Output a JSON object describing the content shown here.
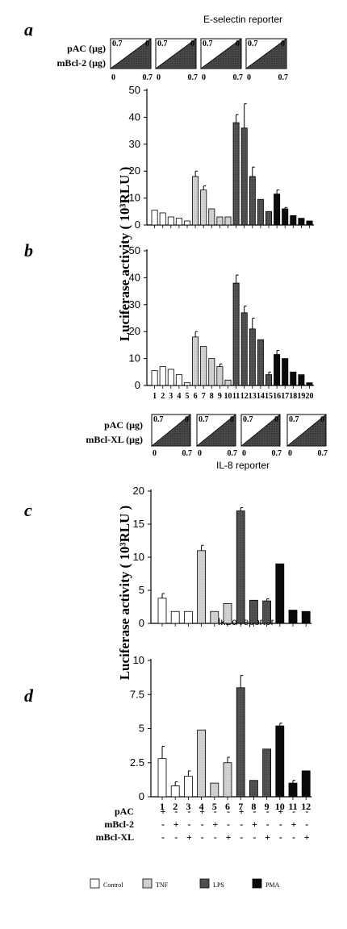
{
  "panel_labels": [
    "a",
    "b",
    "c",
    "d"
  ],
  "titles": {
    "e_selectin": "E-selectin reporter",
    "il8": "IL-8 reporter",
    "ikba": "IκBα reporter"
  },
  "ylabel_ab": "Luciferase activity ( 10³RLU )",
  "ylabel_cd": "Luciferase activity ( 10³RLU )",
  "wedges": {
    "top": {
      "row1": "pAC (µg)",
      "row2": "mBcl-2 (µg)",
      "start": "0.7",
      "end": "0",
      "low": "0",
      "high": "0.7"
    },
    "bottom": {
      "row1": "pAC (µg)",
      "row2": "mBcl-XL (µg)",
      "start": "0.7",
      "end": "0",
      "low": "0",
      "high": "0.7"
    }
  },
  "treatment_table": {
    "rows": [
      {
        "label": "pAC",
        "signs": [
          "+",
          "-",
          "-",
          "+",
          "-",
          "-",
          "+",
          "-",
          "-",
          "+",
          "-",
          "-"
        ]
      },
      {
        "label": "mBcl-2",
        "signs": [
          "-",
          "+",
          "-",
          "-",
          "+",
          "-",
          "-",
          "+",
          "-",
          "-",
          "+",
          "-"
        ]
      },
      {
        "label": "mBcl-XL",
        "signs": [
          "-",
          "-",
          "+",
          "-",
          "-",
          "+",
          "-",
          "-",
          "+",
          "-",
          "-",
          "+"
        ]
      }
    ]
  },
  "legend": [
    {
      "label": "Control",
      "color": "#ffffff"
    },
    {
      "label": "TNF",
      "color": "#d4d4d4"
    },
    {
      "label": "LPS",
      "color": "#555555"
    },
    {
      "label": "PMA",
      "color": "#0a0a0a"
    }
  ],
  "colors": {
    "control": "#ffffff",
    "tnf": "#d4d4d4",
    "lps": "#555555",
    "pma": "#0a0a0a"
  },
  "chart_data": [
    {
      "id": "a",
      "type": "bar",
      "title": "E-selectin reporter",
      "ylim": [
        0,
        50
      ],
      "yticks": [
        "0",
        "10",
        "20",
        "30",
        "40",
        "50"
      ],
      "groups": [
        "Control",
        "Control",
        "Control",
        "Control",
        "Control",
        "TNF",
        "TNF",
        "TNF",
        "TNF",
        "TNF",
        "LPS",
        "LPS",
        "LPS",
        "LPS",
        "LPS",
        "PMA",
        "PMA",
        "PMA",
        "PMA",
        "PMA"
      ],
      "values": [
        5.5,
        4.5,
        3,
        2.5,
        1.5,
        18,
        13,
        6,
        3,
        3,
        38,
        36,
        18,
        9.5,
        5,
        11.5,
        6,
        3.5,
        2.5,
        1.5
      ],
      "errors": [
        0,
        0,
        0,
        0,
        0,
        2,
        1.5,
        0,
        0,
        0,
        3,
        9,
        3.5,
        0,
        0,
        1.5,
        0.5,
        0,
        0,
        0
      ]
    },
    {
      "id": "b",
      "type": "bar",
      "ylim": [
        0,
        50
      ],
      "yticks": [
        "0",
        "10",
        "20",
        "30",
        "40",
        "50"
      ],
      "categories": [
        "1",
        "2",
        "3",
        "4",
        "5",
        "6",
        "7",
        "8",
        "9",
        "10",
        "11",
        "12",
        "13",
        "14",
        "15",
        "16",
        "17",
        "18",
        "19",
        "20"
      ],
      "groups": [
        "Control",
        "Control",
        "Control",
        "Control",
        "Control",
        "TNF",
        "TNF",
        "TNF",
        "TNF",
        "TNF",
        "LPS",
        "LPS",
        "LPS",
        "LPS",
        "LPS",
        "PMA",
        "PMA",
        "PMA",
        "PMA",
        "PMA"
      ],
      "values": [
        5.5,
        7,
        6,
        4,
        1,
        18,
        14.5,
        10,
        7,
        2,
        38,
        27,
        21,
        17,
        4,
        11.5,
        10,
        5,
        4,
        1
      ],
      "errors": [
        0,
        0,
        0,
        0,
        0,
        2,
        0,
        0,
        1,
        0,
        3,
        2.5,
        4,
        0,
        1,
        1.5,
        0,
        0,
        0,
        0
      ]
    },
    {
      "id": "c",
      "type": "bar",
      "title": "IL-8 reporter",
      "ylim": [
        0,
        20
      ],
      "yticks": [
        "0",
        "5",
        "10",
        "15",
        "20"
      ],
      "groups": [
        "Control",
        "Control",
        "Control",
        "TNF",
        "TNF",
        "TNF",
        "LPS",
        "LPS",
        "LPS",
        "PMA",
        "PMA",
        "PMA"
      ],
      "values": [
        3.8,
        1.8,
        1.8,
        11,
        1.8,
        3,
        17,
        3.5,
        3.4,
        9,
        2,
        1.8
      ],
      "errors": [
        0.7,
        0,
        0,
        0.8,
        0,
        0,
        0.5,
        0,
        0.3,
        0,
        0,
        0
      ]
    },
    {
      "id": "d",
      "type": "bar",
      "title": "IκBα reporter",
      "ylim": [
        0,
        10
      ],
      "yticks": [
        "0",
        "2.5",
        "5",
        "7.5",
        "10"
      ],
      "categories": [
        "1",
        "2",
        "3",
        "4",
        "5",
        "6",
        "7",
        "8",
        "9",
        "10",
        "11",
        "12"
      ],
      "groups": [
        "Control",
        "Control",
        "Control",
        "TNF",
        "TNF",
        "TNF",
        "LPS",
        "LPS",
        "LPS",
        "PMA",
        "PMA",
        "PMA"
      ],
      "values": [
        2.8,
        0.8,
        1.5,
        4.9,
        1,
        2.5,
        8,
        1.2,
        3.5,
        5.2,
        1,
        1.9
      ],
      "errors": [
        0.9,
        0.3,
        0.4,
        0,
        0,
        0.4,
        0.9,
        0,
        0,
        0.2,
        0.2,
        0
      ]
    }
  ]
}
